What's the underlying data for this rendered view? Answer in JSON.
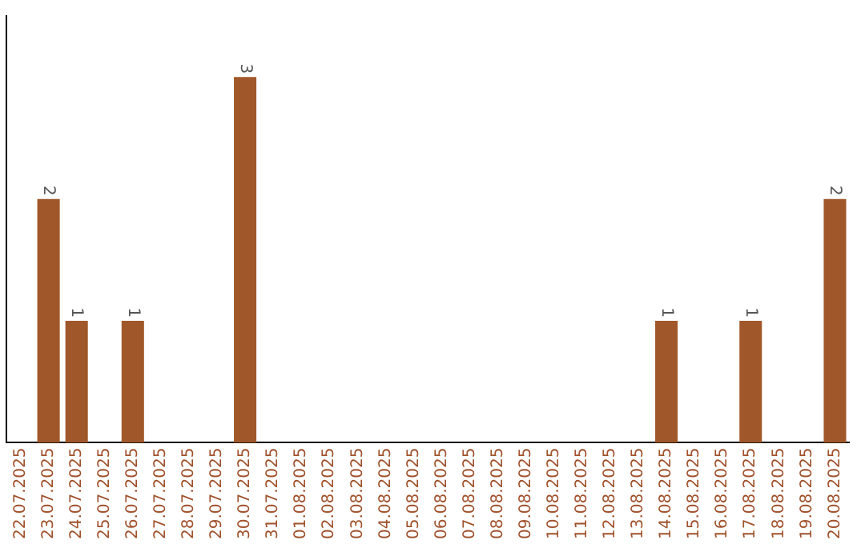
{
  "chart_data": {
    "type": "bar",
    "categories": [
      "22.07.2025",
      "23.07.2025",
      "24.07.2025",
      "25.07.2025",
      "26.07.2025",
      "27.07.2025",
      "28.07.2025",
      "29.07.2025",
      "30.07.2025",
      "31.07.2025",
      "01.08.2025",
      "02.08.2025",
      "03.08.2025",
      "04.08.2025",
      "05.08.2025",
      "06.08.2025",
      "07.08.2025",
      "08.08.2025",
      "09.08.2025",
      "10.08.2025",
      "11.08.2025",
      "12.08.2025",
      "13.08.2025",
      "14.08.2025",
      "15.08.2025",
      "16.08.2025",
      "17.08.2025",
      "18.08.2025",
      "19.08.2025",
      "20.08.2025"
    ],
    "values": [
      0,
      2,
      1,
      0,
      1,
      0,
      0,
      0,
      3,
      0,
      0,
      0,
      0,
      0,
      0,
      0,
      0,
      0,
      0,
      0,
      0,
      0,
      0,
      1,
      0,
      0,
      1,
      0,
      0,
      2
    ],
    "value_labels": [
      null,
      "2",
      "1",
      null,
      "1",
      null,
      null,
      null,
      "3",
      null,
      null,
      null,
      null,
      null,
      null,
      null,
      null,
      null,
      null,
      null,
      null,
      null,
      null,
      "1",
      null,
      null,
      "1",
      null,
      null,
      "2"
    ],
    "color": "#a0582a",
    "tick_labels": "x",
    "grid": false,
    "legend": false
  }
}
